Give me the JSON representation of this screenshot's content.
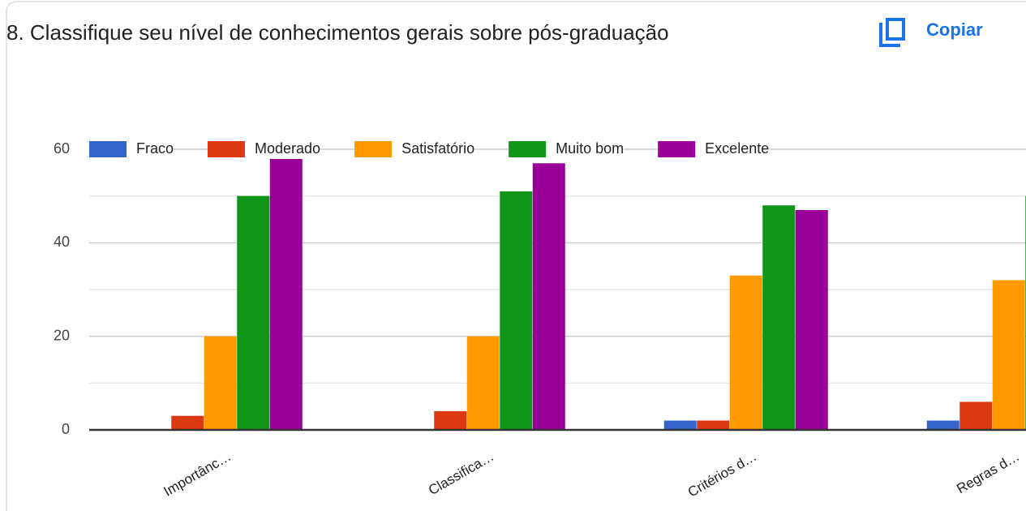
{
  "header": {
    "title": "8. Classifique seu nível de conhecimentos gerais sobre pós-graduação",
    "copy_button": "Copiar"
  },
  "chart_data": {
    "type": "bar",
    "categories": [
      "Importânc…",
      "Classifica…",
      "Critérios d…",
      "Regras d…"
    ],
    "series": [
      {
        "name": "Fraco",
        "color": "#3366cc",
        "values": [
          0,
          0,
          2,
          2
        ]
      },
      {
        "name": "Moderado",
        "color": "#dc3912",
        "values": [
          3,
          4,
          2,
          6
        ]
      },
      {
        "name": "Satisfatório",
        "color": "#ff9900",
        "values": [
          20,
          20,
          33,
          32
        ]
      },
      {
        "name": "Muito bom",
        "color": "#109618",
        "values": [
          50,
          51,
          48,
          50
        ]
      },
      {
        "name": "Excelente",
        "color": "#990099",
        "values": [
          59,
          57,
          47,
          null
        ]
      }
    ],
    "ylim": [
      0,
      60
    ],
    "yticks": [
      0,
      20,
      40,
      60
    ],
    "minor_yticks": [
      10,
      30,
      50
    ],
    "grid": true,
    "legend": "top"
  }
}
